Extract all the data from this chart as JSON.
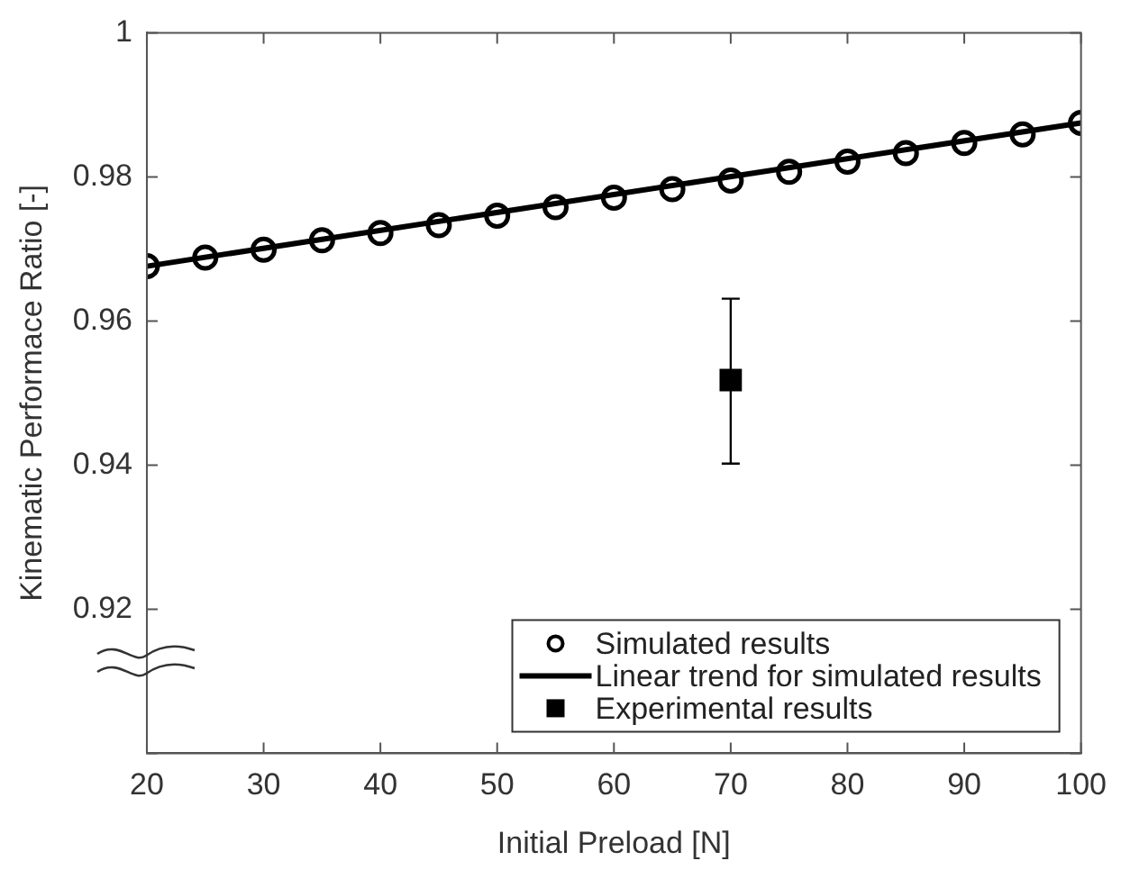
{
  "chart_data": {
    "type": "scatter",
    "xlabel": "Initial Preload [N]",
    "ylabel": "Kinematic Performace Ratio [-]",
    "xlim": [
      20,
      100
    ],
    "xticks": [
      20,
      30,
      40,
      50,
      60,
      70,
      80,
      90,
      100
    ],
    "ylim": [
      0.9,
      1
    ],
    "yticks": [
      {
        "value": 0.9,
        "label": null
      },
      0.92,
      0.94,
      0.96,
      0.98,
      1
    ],
    "grid": false,
    "legend": "bottom right",
    "series": [
      {
        "name": "Simulated results",
        "marker": "circle",
        "color": "#000000",
        "x": [
          20,
          25,
          30,
          35,
          40,
          45,
          50,
          55,
          60,
          65,
          70,
          75,
          80,
          85,
          90,
          95,
          100
        ],
        "values": [
          0.9676,
          0.9688,
          0.9699,
          0.9712,
          0.9722,
          0.9733,
          0.9746,
          0.9758,
          0.9771,
          0.9783,
          0.9795,
          0.9807,
          0.9821,
          0.9833,
          0.9847,
          0.9859,
          0.9875
        ]
      },
      {
        "name": "Linear trend for simulated results",
        "type": "line",
        "marker": "none",
        "color": "#000000",
        "x": [
          20,
          100
        ],
        "values": [
          0.9676,
          0.9875
        ]
      },
      {
        "name": "Experimental results",
        "marker": "square",
        "color": "#000000",
        "x": [
          70
        ],
        "values": [
          0.9518
        ],
        "errors": [
          [
            0.9402,
            0.9631
          ]
        ]
      }
    ]
  }
}
